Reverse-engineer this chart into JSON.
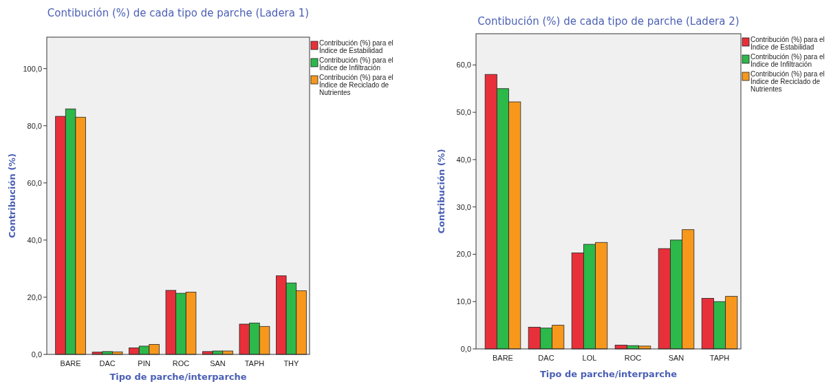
{
  "chart_data": [
    {
      "type": "bar",
      "title": "Contibución (%) de cada tipo de parche (Ladera 1)",
      "xlabel": "Tipo de parche/interparche",
      "ylabel": "Contribución (%)",
      "categories": [
        "BARE",
        "DAC",
        "PIN",
        "ROC",
        "SAN",
        "TAPH",
        "THY"
      ],
      "ylim": [
        0,
        111
      ],
      "yticks": [
        {
          "value": 0,
          "label": "0,0"
        },
        {
          "value": 20,
          "label": "20,0"
        },
        {
          "value": 40,
          "label": "40,0"
        },
        {
          "value": 60,
          "label": "60,0"
        },
        {
          "value": 80,
          "label": "80,0"
        },
        {
          "value": 100,
          "label": "100,0"
        }
      ],
      "legend": "top right",
      "grid": false,
      "series": [
        {
          "name": "Contribución (%) para el Índice de Estabilidad",
          "color": "#e8303a",
          "values": [
            83.3,
            0.8,
            2.3,
            22.4,
            1.0,
            10.6,
            27.5
          ]
        },
        {
          "name": "Contribución (%) para el Índice de Infiltración",
          "color": "#2db84a",
          "values": [
            85.9,
            1.0,
            2.9,
            21.4,
            1.2,
            11.0,
            25.0
          ]
        },
        {
          "name": "Contribución (%) para el Índice de Reciclado de Nutrientes",
          "color": "#f7981d",
          "values": [
            83.0,
            0.9,
            3.5,
            21.8,
            1.2,
            9.8,
            22.3
          ]
        }
      ]
    },
    {
      "type": "bar",
      "title": "Contibución (%) de cada tipo de parche (Ladera 2)",
      "xlabel": "Tipo de parche/interparche",
      "ylabel": "Contribución (%)",
      "categories": [
        "BARE",
        "DAC",
        "LOL",
        "ROC",
        "SAN",
        "TAPH"
      ],
      "ylim": [
        0,
        66.6
      ],
      "yticks": [
        {
          "value": 0,
          "label": "0,0"
        },
        {
          "value": 10,
          "label": "10,0"
        },
        {
          "value": 20,
          "label": "20,0"
        },
        {
          "value": 30,
          "label": "30,0"
        },
        {
          "value": 40,
          "label": "40,0"
        },
        {
          "value": 50,
          "label": "50,0"
        },
        {
          "value": 60,
          "label": "60,0"
        }
      ],
      "legend": "top right",
      "grid": false,
      "series": [
        {
          "name": "Contribución (%) para el Índice de Estabilidad",
          "color": "#e8303a",
          "values": [
            58.0,
            4.6,
            20.3,
            0.8,
            21.2,
            10.7
          ]
        },
        {
          "name": "Contribución (%) para el Índice de Infiltración",
          "color": "#2db84a",
          "values": [
            55.0,
            4.4,
            22.1,
            0.7,
            23.0,
            10.0
          ]
        },
        {
          "name": "Contribución (%) para el Índice de Reciclado de Nutrientes",
          "color": "#f7981d",
          "values": [
            52.2,
            5.0,
            22.5,
            0.6,
            25.2,
            11.1
          ]
        }
      ]
    }
  ]
}
